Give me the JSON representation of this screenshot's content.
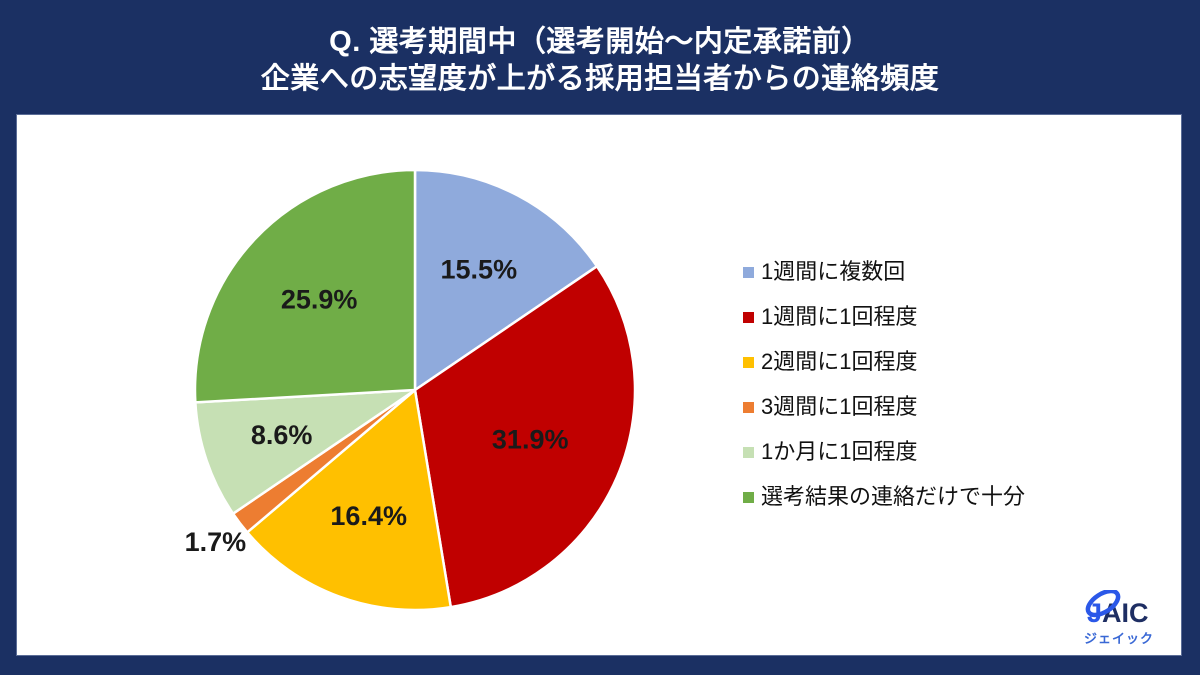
{
  "header": {
    "line1": "Q. 選考期間中（選考開始～内定承諾前）",
    "line2": "企業への志望度が上がる採用担当者からの連絡頻度"
  },
  "chart_data": {
    "type": "pie",
    "title": "選考期間中（選考開始～内定承諾前）企業への志望度が上がる採用担当者からの連絡頻度",
    "unit": "%",
    "value_suffix": "%",
    "start_angle": "12時方向から時計回り",
    "legend_position": "right",
    "slices": [
      {
        "label": "1週間に複数回",
        "value": 15.5,
        "color": "#8faadc",
        "label_r": 0.62
      },
      {
        "label": "1週間に1回程度",
        "value": 31.9,
        "color": "#c00000",
        "label_r": 0.57
      },
      {
        "label": "2週間に1回程度",
        "value": 16.4,
        "color": "#ffc000",
        "label_r": 0.61
      },
      {
        "label": "3週間に1回程度",
        "value": 1.7,
        "color": "#ed7d31",
        "label_r": 1.14
      },
      {
        "label": "1か月に1回程度",
        "value": 8.6,
        "color": "#c6e0b4",
        "label_r": 0.64
      },
      {
        "label": "選考結果の連絡だけで十分",
        "value": 25.9,
        "color": "#70ad47",
        "label_r": 0.6
      }
    ]
  },
  "logo": {
    "j": "J",
    "aic": "AIC",
    "subtext": "ジェイック"
  },
  "colors": {
    "background_navy": "#1b3063",
    "panel_white": "#ffffff",
    "title_text": "#ffffff",
    "label_text": "#1a1a1a",
    "logo_blue": "#2b58e8",
    "logo_navy": "#1e2e63"
  }
}
